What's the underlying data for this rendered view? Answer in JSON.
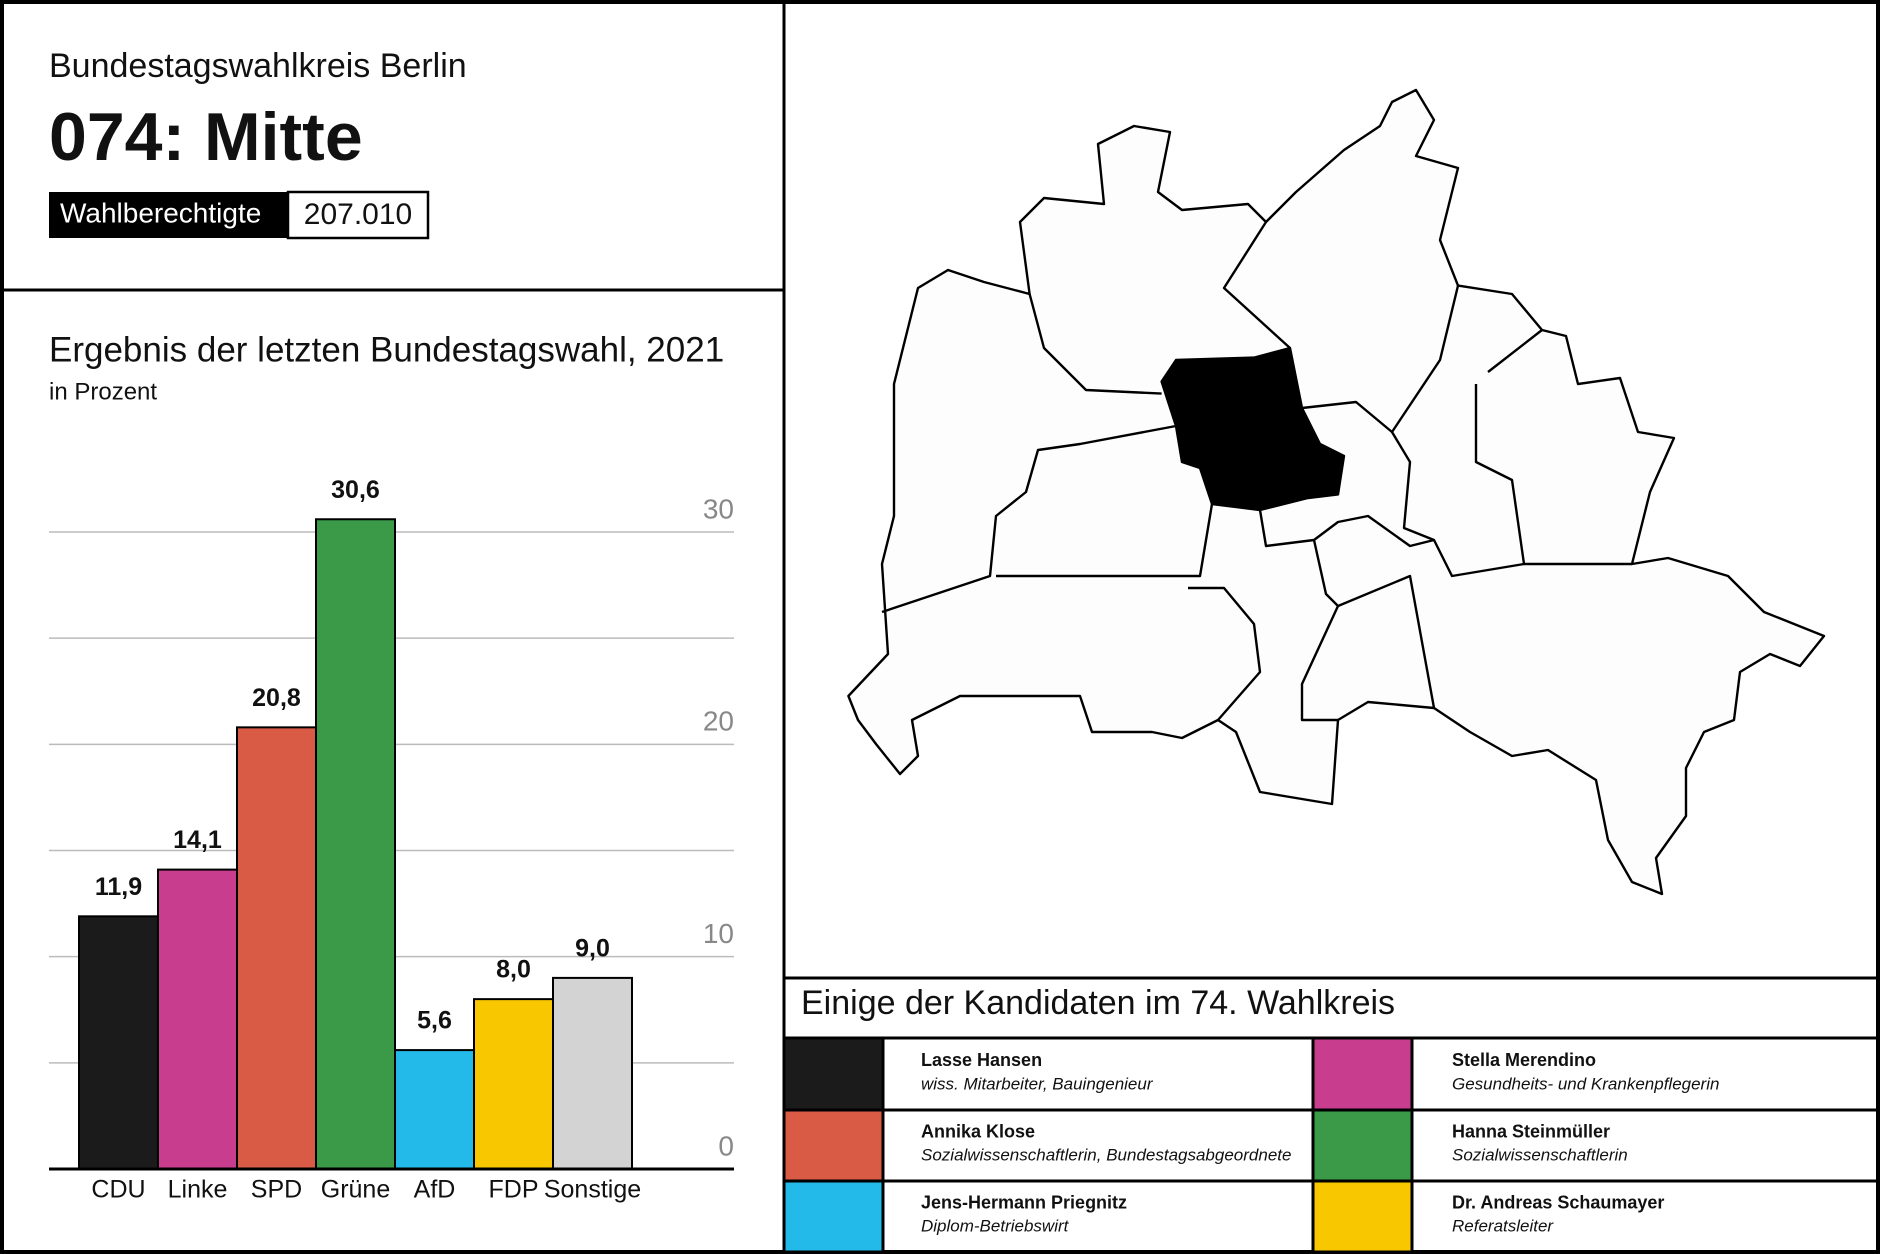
{
  "header": {
    "subtitle": "Bundestagswahlkreis Berlin",
    "title": "074: Mitte",
    "eligible_label": "Wahlberechtigte",
    "eligible_value": "207.010"
  },
  "chart_data": {
    "type": "bar",
    "title": "Ergebnis der letzten Bundestagswahl, 2021",
    "subtitle": "in Prozent",
    "categories": [
      "CDU",
      "Linke",
      "SPD",
      "Grüne",
      "AfD",
      "FDP",
      "Sonstige"
    ],
    "values": [
      11.9,
      14.1,
      20.8,
      30.6,
      5.6,
      8.0,
      9.0
    ],
    "value_labels": [
      "11,9",
      "14,1",
      "20,8",
      "30,6",
      "5,6",
      "8,0",
      "9,0"
    ],
    "colors": [
      "#1b1b1b",
      "#c93d8e",
      "#d95a45",
      "#3a9a48",
      "#23b9e8",
      "#f9c700",
      "#d3d3d3"
    ],
    "ylim": [
      0,
      30
    ],
    "yticks": [
      0,
      {
        "value": 5,
        "label": null
      },
      10,
      {
        "value": 15,
        "label": null
      },
      20,
      {
        "value": 25,
        "label": null
      },
      30
    ],
    "grid": true
  },
  "candidates": {
    "title": "Einige der Kandidaten im 74. Wahlkreis",
    "items": [
      {
        "name": "Lasse Hansen",
        "role": "wiss. Mitarbeiter, Bauingenieur",
        "color": "#1b1b1b"
      },
      {
        "name": "Stella Merendino",
        "role": "Gesundheits- und Krankenpflegerin",
        "color": "#c93d8e"
      },
      {
        "name": "Annika Klose",
        "role": "Sozialwissenschaftlerin, Bundestagsabgeordnete",
        "color": "#d95a45"
      },
      {
        "name": "Hanna Steinmüller",
        "role": "Sozialwissenschaftlerin",
        "color": "#3a9a48"
      },
      {
        "name": "Jens-Hermann Priegnitz",
        "role": "Diplom-Betriebswirt",
        "color": "#23b9e8"
      },
      {
        "name": "Dr. Andreas Schaumayer",
        "role": "Referatsleiter",
        "color": "#f9c700"
      }
    ]
  }
}
